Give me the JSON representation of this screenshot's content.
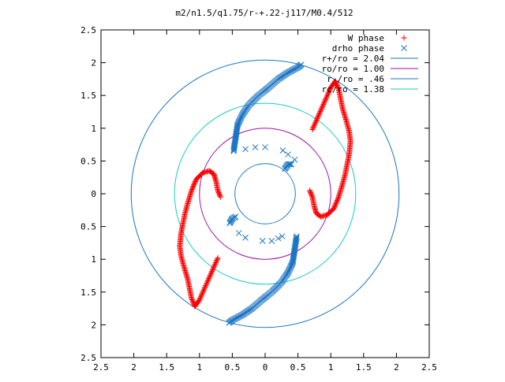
{
  "chart_data": {
    "type": "scatter",
    "title": "m2/n1.5/q1.75/r-+.22-j117/M0.4/512",
    "xlim": [
      -2.5,
      2.5
    ],
    "ylim": [
      -2.5,
      2.5
    ],
    "x_ticks": [
      -2.5,
      -2,
      -1.5,
      -1,
      -0.5,
      0,
      0.5,
      1,
      1.5,
      2,
      2.5
    ],
    "y_ticks": [
      -2.5,
      -2,
      -1.5,
      -1,
      -0.5,
      0,
      0.5,
      1,
      1.5,
      2,
      2.5
    ],
    "x_tick_labels": [
      "2.5",
      "2",
      "1.5",
      "1",
      "0.5",
      "0",
      "0.5",
      "1",
      "1.5",
      "2",
      "2.5"
    ],
    "y_tick_labels": [
      "2.5",
      "2",
      "1.5",
      "1",
      "0.5",
      "0",
      "0.5",
      "1",
      "1.5",
      "2",
      "2.5"
    ],
    "legend_position": "top-right",
    "circles": [
      {
        "name": "r+/ro = 2.04",
        "radius": 2.04,
        "color": "#1a74c4"
      },
      {
        "name": "ro/ro = 1.00",
        "radius": 1.0,
        "color": "#9b0fa0"
      },
      {
        "name": "r-/ro = .46",
        "radius": 0.46,
        "color": "#1a74c4"
      },
      {
        "name": "rc/ro = 1.38",
        "radius": 1.38,
        "color": "#19c9c9"
      }
    ],
    "series": [
      {
        "name": "W phase",
        "marker": "+",
        "color": "#ff0000",
        "arms": [
          [
            [
              0.72,
              0.98
            ],
            [
              1.0,
              1.62
            ],
            [
              1.07,
              1.72
            ],
            [
              1.12,
              1.6
            ],
            [
              1.15,
              1.45
            ],
            [
              1.18,
              1.3
            ],
            [
              1.24,
              1.1
            ],
            [
              1.28,
              0.95
            ],
            [
              1.3,
              0.8
            ],
            [
              1.28,
              0.6
            ],
            [
              1.25,
              0.45
            ],
            [
              1.22,
              0.3
            ],
            [
              1.18,
              0.15
            ],
            [
              1.12,
              -0.05
            ],
            [
              1.05,
              -0.22
            ],
            [
              0.95,
              -0.32
            ],
            [
              0.85,
              -0.35
            ],
            [
              0.78,
              -0.3
            ],
            [
              0.75,
              -0.2
            ],
            [
              0.72,
              -0.05
            ],
            [
              0.68,
              0.05
            ]
          ],
          [
            [
              -0.72,
              -0.98
            ],
            [
              -1.0,
              -1.62
            ],
            [
              -1.07,
              -1.72
            ],
            [
              -1.12,
              -1.6
            ],
            [
              -1.15,
              -1.45
            ],
            [
              -1.18,
              -1.3
            ],
            [
              -1.24,
              -1.1
            ],
            [
              -1.28,
              -0.95
            ],
            [
              -1.3,
              -0.8
            ],
            [
              -1.28,
              -0.6
            ],
            [
              -1.25,
              -0.45
            ],
            [
              -1.22,
              -0.3
            ],
            [
              -1.18,
              -0.15
            ],
            [
              -1.12,
              0.05
            ],
            [
              -1.05,
              0.22
            ],
            [
              -0.95,
              0.32
            ],
            [
              -0.85,
              0.35
            ],
            [
              -0.78,
              0.3
            ],
            [
              -0.75,
              0.2
            ],
            [
              -0.72,
              0.05
            ],
            [
              -0.68,
              -0.05
            ]
          ]
        ]
      },
      {
        "name": "drho phase",
        "marker": "x",
        "color": "#1a74c4",
        "arms": [
          [
            [
              -0.48,
              0.65
            ],
            [
              -0.45,
              0.85
            ],
            [
              -0.42,
              1.05
            ],
            [
              -0.35,
              1.2
            ],
            [
              -0.25,
              1.35
            ],
            [
              -0.1,
              1.5
            ],
            [
              0.05,
              1.62
            ],
            [
              0.2,
              1.75
            ],
            [
              0.35,
              1.85
            ],
            [
              0.5,
              1.93
            ],
            [
              0.55,
              1.97
            ]
          ],
          [
            [
              0.48,
              -0.65
            ],
            [
              0.45,
              -0.85
            ],
            [
              0.42,
              -1.05
            ],
            [
              0.35,
              -1.2
            ],
            [
              0.25,
              -1.35
            ],
            [
              0.1,
              -1.5
            ],
            [
              -0.05,
              -1.62
            ],
            [
              -0.2,
              -1.75
            ],
            [
              -0.35,
              -1.85
            ],
            [
              -0.5,
              -1.93
            ],
            [
              -0.55,
              -1.97
            ]
          ],
          [
            [
              -0.54,
              -0.45
            ],
            [
              -0.5,
              -0.38
            ],
            [
              -0.45,
              -0.35
            ]
          ],
          [
            [
              0.3,
              0.38
            ],
            [
              0.35,
              0.45
            ],
            [
              0.4,
              0.45
            ]
          ]
        ],
        "loose_points": [
          [
            -0.4,
            -0.6
          ],
          [
            -0.3,
            -0.67
          ],
          [
            -0.04,
            -0.72
          ],
          [
            0.1,
            -0.72
          ],
          [
            0.2,
            -0.68
          ],
          [
            0.26,
            -0.65
          ],
          [
            -0.3,
            0.68
          ],
          [
            -0.15,
            0.71
          ],
          [
            0.0,
            0.71
          ],
          [
            0.27,
            0.66
          ],
          [
            0.35,
            0.6
          ],
          [
            0.45,
            0.52
          ]
        ]
      }
    ]
  }
}
